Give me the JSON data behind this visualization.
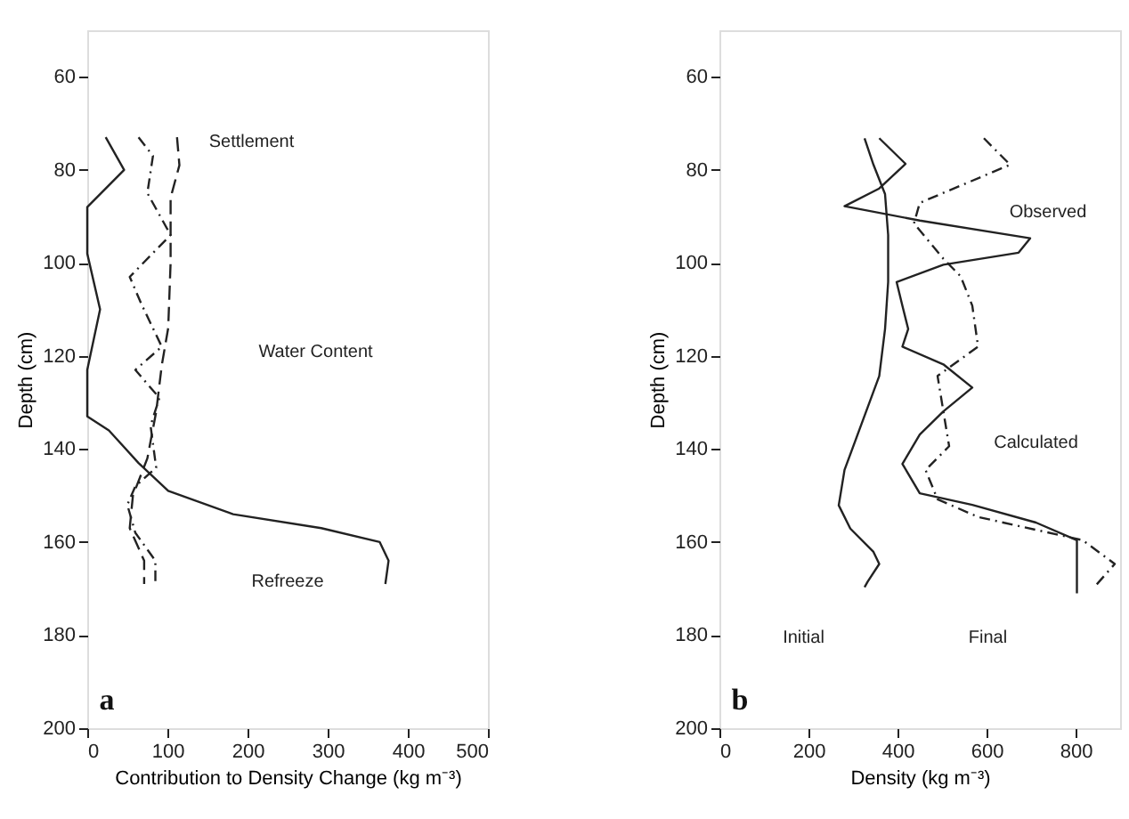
{
  "chart_data": [
    {
      "type": "line",
      "xlabel": "Contribution to Density Change (kg m⁻³)",
      "ylabel": "Depth (cm)",
      "xlim": [
        0,
        500
      ],
      "ylim": [
        200,
        50
      ],
      "xticks": [
        0,
        100,
        200,
        300,
        400,
        500
      ],
      "yticks": [
        60,
        80,
        100,
        120,
        140,
        160,
        180,
        200
      ],
      "series": [
        {
          "color": "#222222",
          "line_style": "solid",
          "x": [
            23,
            46,
            0,
            0,
            16,
            0,
            0,
            27,
            64,
            101,
            182,
            292,
            365,
            376,
            372
          ],
          "values": [
            73,
            80,
            88,
            98,
            110,
            123,
            133,
            136,
            143,
            149,
            154,
            157,
            160,
            164,
            169
          ]
        },
        {
          "color": "#222222",
          "line_style": "dashed",
          "x": [
            112,
            115,
            104,
            104,
            101,
            93,
            86,
            75,
            57,
            53,
            71,
            71
          ],
          "values": [
            73,
            79,
            86,
            100,
            114,
            122,
            132,
            142,
            150,
            157,
            164,
            169
          ]
        },
        {
          "color": "#222222",
          "line_style": "dotted",
          "x": [
            64,
            82,
            75,
            104,
            53,
            68,
            93,
            60,
            90,
            79,
            86,
            60,
            50,
            60,
            85,
            85
          ],
          "values": [
            73,
            77,
            85,
            94,
            103,
            109,
            118,
            123,
            129,
            135,
            144,
            148,
            152,
            158,
            164,
            169
          ]
        }
      ],
      "annotations": [
        "Settlement",
        "Water Content",
        "Refreeze",
        "a"
      ]
    },
    {
      "type": "line",
      "xlabel": "Density (kg m⁻³)",
      "ylabel": "Depth (cm)",
      "xlim": [
        0,
        900
      ],
      "ylim": [
        200,
        50
      ],
      "xticks": [
        0,
        200,
        400,
        600,
        800
      ],
      "yticks": [
        60,
        80,
        100,
        120,
        140,
        160,
        180,
        200
      ],
      "series": [
        {
          "color": "#222222",
          "line_style": "solid",
          "x": [
            326,
            346,
            372,
            379,
            379,
            372,
            359,
            320,
            281,
            268,
            294,
            346,
            359,
            333,
            326
          ],
          "values": [
            73.2,
            78.9,
            85.2,
            94,
            104.1,
            114.2,
            124.3,
            134.4,
            144.5,
            152.1,
            157.1,
            162.1,
            164.7,
            168.5,
            169.7
          ]
        },
        {
          "color": "#222222",
          "line_style": "solid",
          "x": [
            359,
            418,
            359,
            281,
            450,
            698,
            672,
            503,
            398,
            411,
            424,
            411,
            503,
            568,
            503,
            450,
            411,
            450,
            568,
            711,
            803,
            803
          ],
          "values": [
            73.2,
            78.7,
            84,
            87.8,
            90.9,
            94.7,
            97.8,
            100.4,
            104.1,
            109.2,
            114.2,
            118,
            121.8,
            126.8,
            131.9,
            136.9,
            143.2,
            149.5,
            152,
            155.8,
            159.6,
            171
          ]
        },
        {
          "color": "#222222",
          "line_style": "dotted",
          "x": [
            594,
            653,
            450,
            437,
            503,
            542,
            568,
            581,
            490,
            503,
            516,
            463,
            490,
            581,
            816,
            888,
            842
          ],
          "values": [
            73.2,
            78.9,
            87.1,
            91.5,
            99.1,
            102.9,
            109.2,
            118,
            124.3,
            131.9,
            139.4,
            144.5,
            150.8,
            154.6,
            159.6,
            164.7,
            169.7
          ]
        }
      ],
      "annotations": [
        "Observed",
        "Calculated",
        "Initial",
        "Final",
        "b"
      ]
    }
  ]
}
